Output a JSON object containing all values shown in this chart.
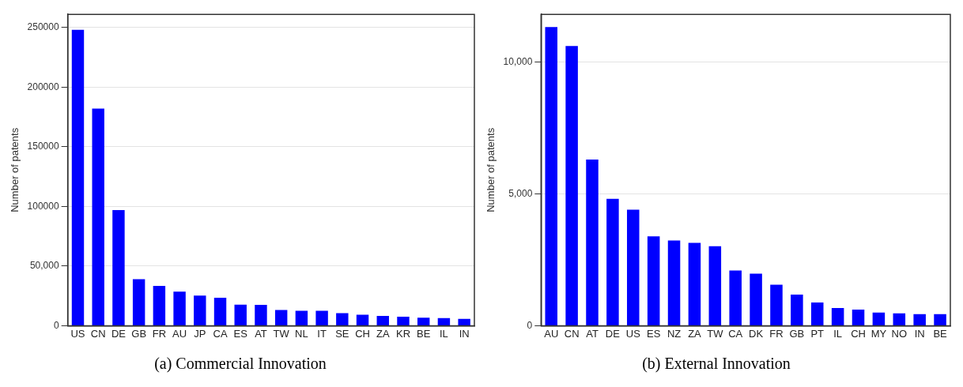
{
  "chart_data": [
    {
      "type": "bar",
      "title": "(a) Commercial Innovation",
      "ylabel": "Number of patents",
      "categories": [
        "US",
        "CN",
        "DE",
        "GB",
        "FR",
        "AU",
        "JP",
        "CA",
        "ES",
        "AT",
        "TW",
        "NL",
        "IT",
        "SE",
        "CH",
        "ZA",
        "KR",
        "BE",
        "IL",
        "IN"
      ],
      "values": [
        248000,
        182000,
        97000,
        39000,
        33400,
        28600,
        25300,
        23500,
        17600,
        17400,
        13200,
        12500,
        12500,
        10500,
        9200,
        8200,
        7500,
        6800,
        6400,
        5700
      ],
      "color": "#0000ff",
      "ylim": [
        0,
        261000
      ],
      "yticks": [
        0,
        {
          "value": 50000,
          "label": "50,000"
        },
        100000,
        150000,
        200000,
        250000
      ],
      "grid": "y",
      "legend": false
    },
    {
      "type": "bar",
      "title": "(b) External Innovation",
      "ylabel": "Number of patents",
      "categories": [
        "AU",
        "CN",
        "AT",
        "DE",
        "US",
        "ES",
        "NZ",
        "ZA",
        "TW",
        "CA",
        "DK",
        "FR",
        "GB",
        "PT",
        "IL",
        "CH",
        "MY",
        "NO",
        "IN",
        "BE"
      ],
      "values": [
        11320,
        10600,
        6300,
        4810,
        4400,
        3390,
        3230,
        3140,
        3010,
        2090,
        1970,
        1550,
        1180,
        880,
        670,
        610,
        500,
        470,
        440,
        440
      ],
      "color": "#0000ff",
      "ylim": [
        0,
        11800
      ],
      "yticks": [
        0,
        {
          "value": 5000,
          "label": "5,000"
        },
        {
          "value": 10000,
          "label": "10,000"
        }
      ],
      "grid": "y",
      "legend": false
    }
  ]
}
